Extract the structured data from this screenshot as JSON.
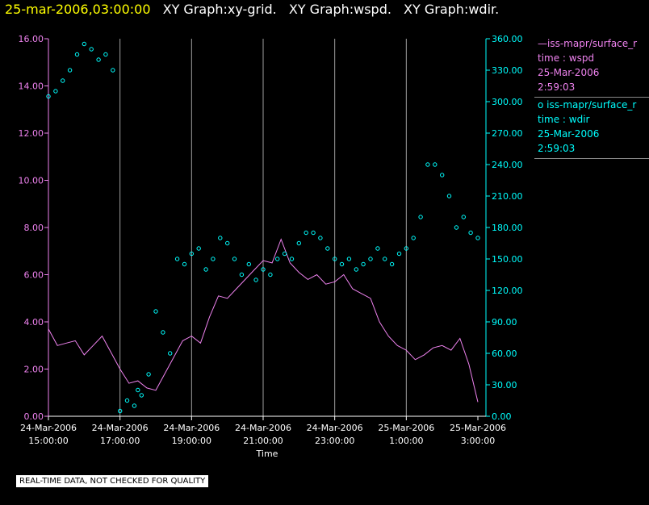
{
  "title": {
    "timestamp": "25-mar-2006,03:00:00",
    "graphs": [
      "XY Graph:xy-grid.",
      "XY Graph:wspd.",
      "XY Graph:wdir."
    ]
  },
  "legend": [
    {
      "marker": "—",
      "name": "iss-mapr/surface_r",
      "label": "time : wspd",
      "date": "25-Mar-2006",
      "time": "2:59:03",
      "color": "#ee82ee"
    },
    {
      "marker": "o",
      "name": "iss-mapr/surface_r",
      "label": "time : wdir",
      "date": "25-Mar-2006",
      "time": "2:59:03",
      "color": "#00ffff"
    }
  ],
  "disclaimer": "REAL-TIME DATA, NOT CHECKED FOR QUALITY",
  "colors": {
    "background": "#000000",
    "wspd": "#ee82ee",
    "wdir": "#00ffff",
    "grid": "#a0a0a0",
    "title_timestamp": "#ffff00",
    "title_text": "#ffffff"
  },
  "chart_data": {
    "type": "line",
    "xlabel": "Time",
    "x_range": [
      "24-Mar-2006 15:00:00",
      "25-Mar-2006 03:00:00"
    ],
    "x_ticks": [
      {
        "date": "24-Mar-2006",
        "time": "15:00:00"
      },
      {
        "date": "24-Mar-2006",
        "time": "17:00:00"
      },
      {
        "date": "24-Mar-2006",
        "time": "19:00:00"
      },
      {
        "date": "24-Mar-2006",
        "time": "21:00:00"
      },
      {
        "date": "24-Mar-2006",
        "time": "23:00:00"
      },
      {
        "date": "25-Mar-2006",
        "time": "1:00:00"
      },
      {
        "date": "25-Mar-2006",
        "time": "3:00:00"
      }
    ],
    "y_left": {
      "ylim": [
        0,
        16
      ],
      "ticks": [
        "0.00",
        "2.00",
        "4.00",
        "6.00",
        "8.00",
        "10.00",
        "12.00",
        "14.00",
        "16.00"
      ]
    },
    "y_right": {
      "ylim": [
        0,
        360
      ],
      "ticks": [
        "0.00",
        "30.00",
        "60.00",
        "90.00",
        "120.00",
        "150.00",
        "180.00",
        "210.00",
        "240.00",
        "270.00",
        "300.00",
        "330.00",
        "360.00"
      ]
    },
    "grid": "vertical lines at x ticks",
    "series": [
      {
        "name": "wspd",
        "type": "line",
        "axis": "left",
        "x_hours": [
          0,
          0.25,
          0.5,
          0.75,
          1,
          1.25,
          1.5,
          1.75,
          2,
          2.25,
          2.5,
          2.75,
          3,
          3.25,
          3.5,
          3.75,
          4,
          4.25,
          4.5,
          4.75,
          5,
          5.25,
          5.5,
          5.75,
          6,
          6.25,
          6.5,
          6.75,
          7,
          7.25,
          7.5,
          7.75,
          8,
          8.25,
          8.5,
          8.75,
          9,
          9.25,
          9.5,
          9.75,
          10,
          10.25,
          10.5,
          10.75,
          11,
          11.25,
          11.5,
          11.75,
          12
        ],
        "values": [
          3.7,
          3.0,
          3.1,
          3.2,
          2.6,
          3.0,
          3.4,
          2.7,
          2.0,
          1.4,
          1.5,
          1.2,
          1.1,
          1.8,
          2.5,
          3.2,
          3.4,
          3.1,
          4.2,
          5.1,
          5.0,
          5.4,
          5.8,
          6.2,
          6.6,
          6.5,
          7.5,
          6.5,
          6.1,
          5.8,
          6.0,
          5.6,
          5.7,
          6.0,
          5.4,
          5.2,
          5.0,
          4.0,
          3.4,
          3.0,
          2.8,
          2.4,
          2.6,
          2.9,
          3.0,
          2.8,
          3.3,
          2.2,
          0.6
        ]
      },
      {
        "name": "wdir",
        "type": "scatter",
        "axis": "right",
        "x_hours": [
          0,
          0.2,
          0.4,
          0.6,
          0.8,
          1.0,
          1.2,
          1.4,
          1.6,
          1.8,
          2.0,
          2.2,
          2.4,
          2.5,
          2.6,
          2.8,
          3.0,
          3.2,
          3.4,
          3.6,
          3.8,
          4.0,
          4.2,
          4.4,
          4.6,
          4.8,
          5.0,
          5.2,
          5.4,
          5.6,
          5.8,
          6.0,
          6.2,
          6.4,
          6.6,
          6.8,
          7.0,
          7.2,
          7.4,
          7.6,
          7.8,
          8.0,
          8.2,
          8.4,
          8.6,
          8.8,
          9.0,
          9.2,
          9.4,
          9.6,
          9.8,
          10.0,
          10.2,
          10.4,
          10.6,
          10.8,
          11.0,
          11.2,
          11.4,
          11.6,
          11.8,
          12.0
        ],
        "values": [
          305,
          310,
          320,
          330,
          345,
          355,
          350,
          340,
          345,
          330,
          5,
          15,
          10,
          25,
          20,
          40,
          100,
          80,
          60,
          150,
          145,
          155,
          160,
          140,
          150,
          170,
          165,
          150,
          135,
          145,
          130,
          140,
          135,
          150,
          155,
          150,
          165,
          175,
          175,
          170,
          160,
          150,
          145,
          150,
          140,
          145,
          150,
          160,
          150,
          145,
          155,
          160,
          170,
          190,
          240,
          240,
          230,
          210,
          180,
          190,
          175,
          170
        ]
      }
    ]
  }
}
